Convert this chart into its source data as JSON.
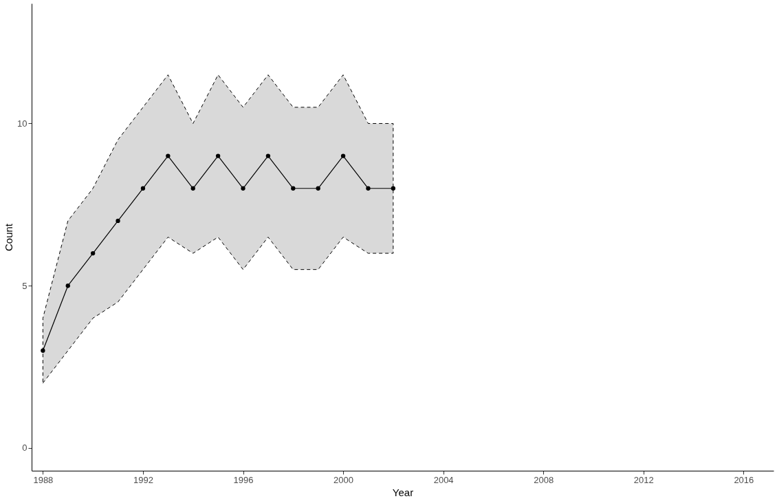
{
  "chart_data": {
    "type": "line",
    "xlabel": "Year",
    "ylabel": "Count",
    "x": [
      1988,
      1989,
      1990,
      1991,
      1992,
      1993,
      1994,
      1995,
      1996,
      1997,
      1998,
      1999,
      2000,
      2001,
      2002
    ],
    "series": [
      {
        "color": "#000000",
        "values": [
          3,
          5,
          6,
          7,
          8,
          9,
          8,
          9,
          8,
          9,
          8,
          8,
          9,
          8,
          8
        ],
        "lower": [
          2,
          3,
          4,
          4.5,
          5.5,
          6.5,
          6,
          6.5,
          5.5,
          6.5,
          5.5,
          5.5,
          6.5,
          6,
          6
        ],
        "upper": [
          4,
          7,
          8,
          9.5,
          10.5,
          11.5,
          10,
          11.5,
          10.5,
          11.5,
          10.5,
          10.5,
          11.5,
          10,
          10
        ]
      }
    ],
    "xlim": [
      1987.55,
      2017.2
    ],
    "xticks": [
      1988,
      1992,
      1996,
      2000,
      2004,
      2008,
      2012,
      2016
    ],
    "ylim": [
      -0.7,
      13.7
    ],
    "yticks": [
      0,
      5,
      10
    ],
    "grid": false,
    "marker": "circle",
    "line_style": "solid"
  }
}
